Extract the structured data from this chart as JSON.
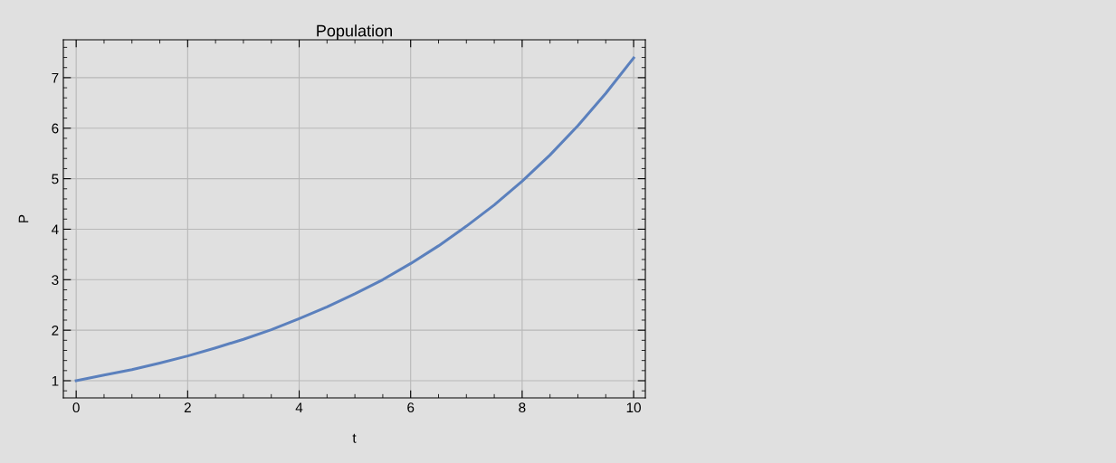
{
  "chart_data": {
    "type": "line",
    "title": "Population",
    "xlabel": "t",
    "ylabel": "P",
    "x": [
      0,
      0.5,
      1,
      1.5,
      2,
      2.5,
      3,
      3.5,
      4,
      4.5,
      5,
      5.5,
      6,
      6.5,
      7,
      7.5,
      8,
      8.5,
      9,
      9.5,
      10
    ],
    "series": [
      {
        "color": "#5b80bd",
        "values": [
          1.0,
          1.11,
          1.22,
          1.35,
          1.49,
          1.65,
          1.82,
          2.01,
          2.23,
          2.46,
          2.72,
          3.0,
          3.32,
          3.67,
          4.06,
          4.48,
          4.95,
          5.47,
          6.05,
          6.69,
          7.39
        ]
      }
    ],
    "xlim": [
      -0.23,
      10.21
    ],
    "ylim": [
      0.66,
      7.75
    ],
    "xticks": [
      0,
      2,
      4,
      6,
      8,
      10
    ],
    "yticks": [
      1,
      2,
      3,
      4,
      5,
      6,
      7
    ],
    "grid": true,
    "legend": false,
    "marker": "none",
    "line_style": "solid"
  }
}
